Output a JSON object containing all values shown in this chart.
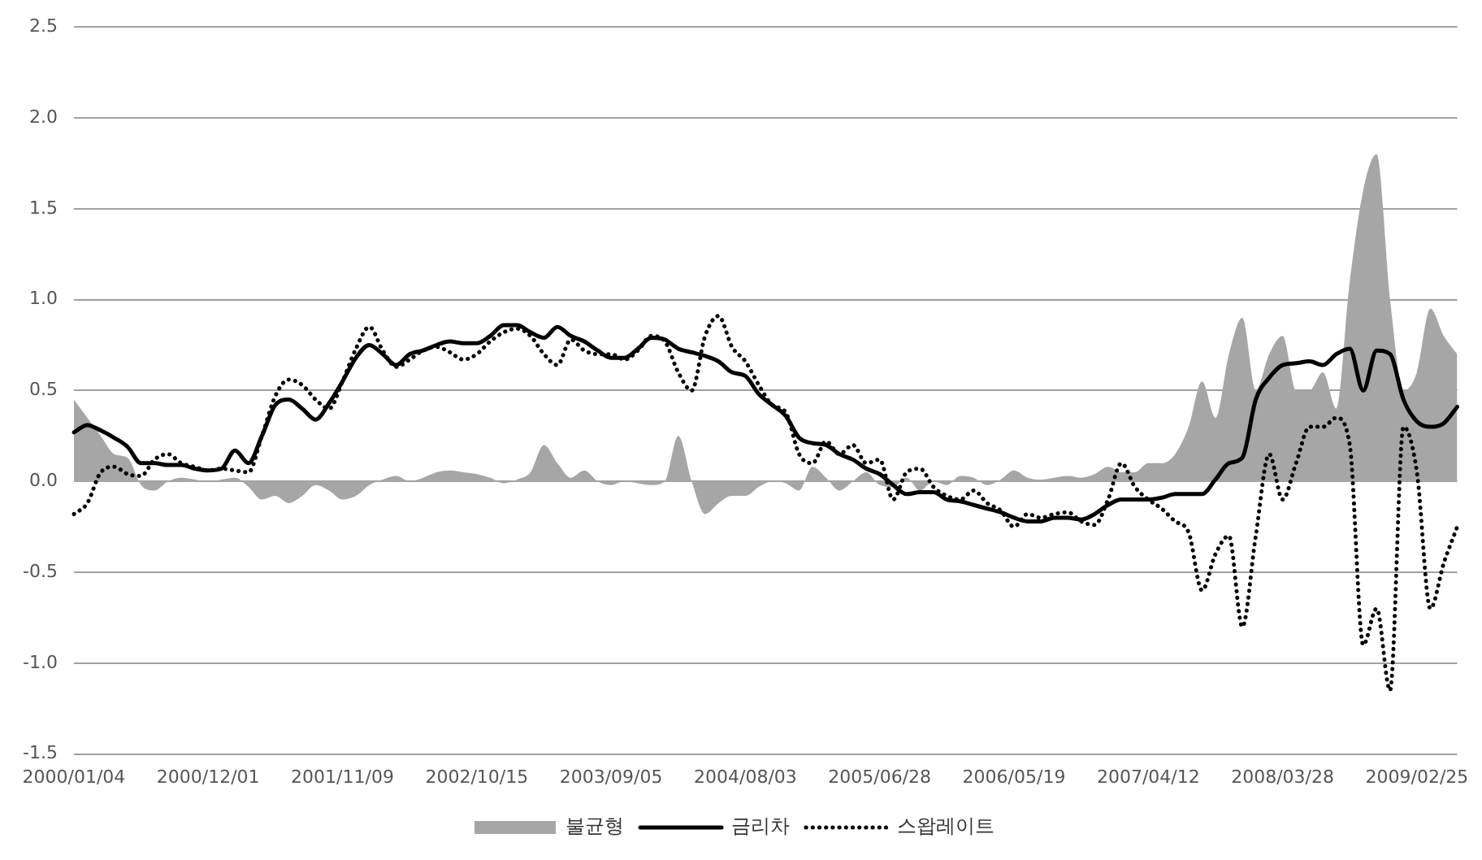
{
  "chart_data": {
    "type": "line",
    "categories": [
      "2000/01/04",
      null,
      null,
      null,
      null,
      null,
      null,
      null,
      null,
      null,
      "2000/12/01",
      null,
      null,
      null,
      null,
      null,
      null,
      null,
      null,
      null,
      "2001/11/09",
      null,
      null,
      null,
      null,
      null,
      null,
      null,
      null,
      null,
      "2002/10/15",
      null,
      null,
      null,
      null,
      null,
      null,
      null,
      null,
      null,
      "2003/09/05",
      null,
      null,
      null,
      null,
      null,
      null,
      null,
      null,
      null,
      "2004/08/03",
      null,
      null,
      null,
      null,
      null,
      null,
      null,
      null,
      null,
      "2005/06/28",
      null,
      null,
      null,
      null,
      null,
      null,
      null,
      null,
      null,
      "2006/05/19",
      null,
      null,
      null,
      null,
      null,
      null,
      null,
      null,
      null,
      "2007/04/12",
      null,
      null,
      null,
      null,
      null,
      null,
      null,
      null,
      null,
      "2008/03/28",
      null,
      null,
      null,
      null,
      null,
      null,
      null,
      null,
      null,
      "2009/02/25",
      null,
      null,
      null
    ],
    "series": [
      {
        "name": "불균형",
        "type": "area",
        "color": "#a6a6a6",
        "values": [
          0.45,
          0.35,
          0.25,
          0.15,
          0.13,
          -0.02,
          -0.05,
          0.0,
          0.02,
          0.01,
          0.0,
          0.01,
          0.02,
          -0.03,
          -0.1,
          -0.08,
          -0.12,
          -0.08,
          -0.02,
          -0.05,
          -0.1,
          -0.08,
          -0.02,
          0.01,
          0.03,
          0.0,
          0.02,
          0.05,
          0.06,
          0.05,
          0.04,
          0.02,
          -0.01,
          0.01,
          0.05,
          0.2,
          0.1,
          0.02,
          0.06,
          0.0,
          -0.02,
          0.0,
          -0.01,
          -0.02,
          0.0,
          0.25,
          0.0,
          -0.18,
          -0.12,
          -0.08,
          -0.08,
          -0.03,
          0.0,
          -0.01,
          -0.05,
          0.08,
          0.02,
          -0.05,
          0.0,
          0.05,
          -0.02,
          -0.03,
          0.02,
          -0.05,
          0.0,
          -0.02,
          0.03,
          0.02,
          -0.02,
          0.01,
          0.06,
          0.02,
          0.01,
          0.02,
          0.03,
          0.02,
          0.04,
          0.08,
          0.05,
          0.05,
          0.1,
          0.1,
          0.15,
          0.3,
          0.55,
          0.35,
          0.7,
          0.9,
          0.5,
          0.7,
          0.8,
          0.5,
          0.5,
          0.6,
          0.4,
          1.1,
          1.6,
          1.8,
          1.0,
          0.5,
          0.6,
          0.95,
          0.8,
          0.7
        ]
      },
      {
        "name": "금리차",
        "line_style": "solid",
        "color": "#000000",
        "values": [
          0.27,
          0.31,
          0.28,
          0.24,
          0.19,
          0.1,
          0.1,
          0.09,
          0.09,
          0.07,
          0.06,
          0.07,
          0.17,
          0.1,
          0.25,
          0.42,
          0.45,
          0.4,
          0.34,
          0.43,
          0.55,
          0.68,
          0.75,
          0.7,
          0.64,
          0.7,
          0.72,
          0.75,
          0.77,
          0.76,
          0.76,
          0.8,
          0.86,
          0.86,
          0.82,
          0.79,
          0.85,
          0.8,
          0.77,
          0.72,
          0.68,
          0.68,
          0.73,
          0.79,
          0.78,
          0.73,
          0.71,
          0.69,
          0.66,
          0.6,
          0.58,
          0.48,
          0.42,
          0.36,
          0.24,
          0.21,
          0.2,
          0.15,
          0.12,
          0.07,
          0.04,
          -0.02,
          -0.07,
          -0.06,
          -0.06,
          -0.1,
          -0.11,
          -0.13,
          -0.15,
          -0.17,
          -0.2,
          -0.22,
          -0.22,
          -0.2,
          -0.2,
          -0.21,
          -0.18,
          -0.13,
          -0.1,
          -0.1,
          -0.1,
          -0.09,
          -0.07,
          -0.07,
          -0.07,
          0.01,
          0.1,
          0.13,
          0.45,
          0.57,
          0.64,
          0.65,
          0.66,
          0.64,
          0.7,
          0.73,
          0.5,
          0.72,
          0.7,
          0.45,
          0.33,
          0.3,
          0.32,
          0.41
        ]
      },
      {
        "name": "스왑레이트",
        "line_style": "dotted",
        "color": "#000000",
        "values": [
          -0.18,
          -0.12,
          0.05,
          0.08,
          0.04,
          0.03,
          0.12,
          0.15,
          0.1,
          0.08,
          0.06,
          0.07,
          0.06,
          0.05,
          0.25,
          0.47,
          0.56,
          0.53,
          0.45,
          0.4,
          0.55,
          0.73,
          0.85,
          0.72,
          0.63,
          0.67,
          0.72,
          0.74,
          0.71,
          0.67,
          0.7,
          0.77,
          0.82,
          0.84,
          0.8,
          0.7,
          0.64,
          0.78,
          0.72,
          0.7,
          0.7,
          0.67,
          0.72,
          0.8,
          0.77,
          0.6,
          0.5,
          0.8,
          0.91,
          0.74,
          0.66,
          0.53,
          0.42,
          0.38,
          0.15,
          0.1,
          0.22,
          0.15,
          0.2,
          0.1,
          0.12,
          -0.1,
          0.05,
          0.07,
          -0.03,
          -0.08,
          -0.1,
          -0.05,
          -0.12,
          -0.16,
          -0.25,
          -0.18,
          -0.2,
          -0.18,
          -0.17,
          -0.22,
          -0.24,
          -0.1,
          0.1,
          -0.03,
          -0.1,
          -0.15,
          -0.22,
          -0.28,
          -0.6,
          -0.4,
          -0.3,
          -0.8,
          -0.3,
          0.15,
          -0.1,
          0.1,
          0.3,
          0.3,
          0.35,
          0.2,
          -0.9,
          -0.7,
          -1.15,
          0.3,
          0.05,
          -0.7,
          -0.45,
          -0.25
        ]
      }
    ],
    "ylim": [
      -1.5,
      2.5
    ],
    "yticks": [
      {
        "value": -1.5,
        "label": "-1.5"
      },
      {
        "value": -1,
        "label": "-1.0"
      },
      {
        "value": -0.5,
        "label": "-0.5"
      },
      {
        "value": 0,
        "label": "0.0"
      },
      {
        "value": 0.5,
        "label": "0.5"
      },
      {
        "value": 1,
        "label": "1.0"
      },
      {
        "value": 1.5,
        "label": "1.5"
      },
      {
        "value": 2,
        "label": "2.0"
      },
      {
        "value": 2.5,
        "label": "2.5"
      }
    ],
    "grid": "y",
    "legend": "bottom"
  }
}
